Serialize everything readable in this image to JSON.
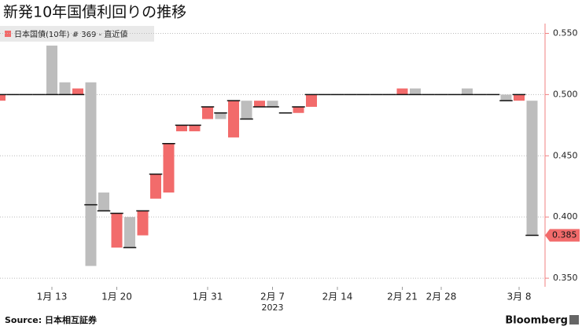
{
  "chart_data": {
    "type": "range",
    "title": "新発10年国債利回りの推移",
    "source": "Source:  日本相互証券",
    "brand": "Bloomberg",
    "year_label": "2023",
    "categories": [
      null,
      null,
      null,
      null,
      "1月 13",
      null,
      null,
      null,
      null,
      "1月 20",
      null,
      null,
      null,
      null,
      null,
      null,
      "1月 31",
      null,
      null,
      null,
      null,
      "2月 7",
      null,
      null,
      null,
      null,
      "2月 14",
      null,
      null,
      null,
      null,
      "2月 21",
      null,
      null,
      "2月 28",
      null,
      null,
      null,
      null,
      null,
      "3月 8",
      null
    ],
    "series": [
      {
        "name": "日本国債(10年) # 369 - 直近値",
        "color": "#f26b6b",
        "low": [
          0.495,
          0.5,
          0.5,
          0.5,
          0.5,
          0.5,
          0.5,
          0.36,
          0.405,
          0.375,
          0.375,
          0.385,
          0.415,
          0.42,
          0.47,
          0.47,
          0.48,
          0.48,
          0.465,
          0.48,
          0.49,
          0.49,
          0.485,
          0.485,
          0.49,
          0.5,
          0.5,
          0.5,
          0.5,
          0.5,
          0.5,
          0.5,
          0.5,
          0.5,
          0.5,
          0.5,
          0.5,
          0.5,
          0.5,
          0.495,
          0.495,
          0.385
        ],
        "high": [
          0.5,
          0.5,
          0.5,
          0.5,
          0.54,
          0.51,
          0.505,
          0.51,
          0.42,
          0.403,
          0.4,
          0.405,
          0.435,
          0.46,
          0.475,
          0.475,
          0.49,
          0.485,
          0.495,
          0.495,
          0.495,
          0.495,
          0.485,
          0.49,
          0.5,
          0.5,
          0.5,
          0.5,
          0.5,
          0.5,
          0.5,
          0.505,
          0.505,
          0.5,
          0.5,
          0.5,
          0.505,
          0.5,
          0.5,
          0.5,
          0.5,
          0.495
        ],
        "close": [
          0.5,
          0.5,
          0.5,
          0.5,
          0.5,
          0.5,
          0.5,
          0.41,
          0.405,
          0.403,
          0.375,
          0.405,
          0.435,
          0.46,
          0.475,
          0.475,
          0.49,
          0.485,
          0.495,
          0.48,
          0.49,
          0.49,
          0.485,
          0.49,
          0.5,
          0.5,
          0.5,
          0.5,
          0.5,
          0.5,
          0.5,
          0.5,
          0.5,
          0.5,
          0.5,
          0.5,
          0.5,
          0.5,
          0.5,
          0.495,
          0.5,
          0.385
        ],
        "colors": [
          "#f26b6b",
          "#bdbdbd",
          "#bdbdbd",
          "#bdbdbd",
          "#bdbdbd",
          "#bdbdbd",
          "#f26b6b",
          "#bdbdbd",
          "#bdbdbd",
          "#f26b6b",
          "#bdbdbd",
          "#f26b6b",
          "#f26b6b",
          "#f26b6b",
          "#f26b6b",
          "#f26b6b",
          "#f26b6b",
          "#bdbdbd",
          "#f26b6b",
          "#bdbdbd",
          "#f26b6b",
          "#bdbdbd",
          "#bdbdbd",
          "#f26b6b",
          "#f26b6b",
          "#bdbdbd",
          "#bdbdbd",
          "#bdbdbd",
          "#bdbdbd",
          "#bdbdbd",
          "#bdbdbd",
          "#f26b6b",
          "#bdbdbd",
          "#bdbdbd",
          "#bdbdbd",
          "#bdbdbd",
          "#bdbdbd",
          "#bdbdbd",
          "#bdbdbd",
          "#bdbdbd",
          "#f26b6b",
          "#bdbdbd"
        ]
      }
    ],
    "current": {
      "value": 0.385,
      "label": "0.385"
    },
    "ylim": [
      0.343,
      0.558
    ],
    "yticks": [
      {
        "value": 0.35,
        "label": "0.350"
      },
      {
        "value": 0.4,
        "label": "0.400"
      },
      {
        "value": 0.45,
        "label": "0.450"
      },
      {
        "value": 0.5,
        "label": "0.500"
      },
      {
        "value": 0.55,
        "label": "0.550"
      }
    ],
    "grid": true
  }
}
